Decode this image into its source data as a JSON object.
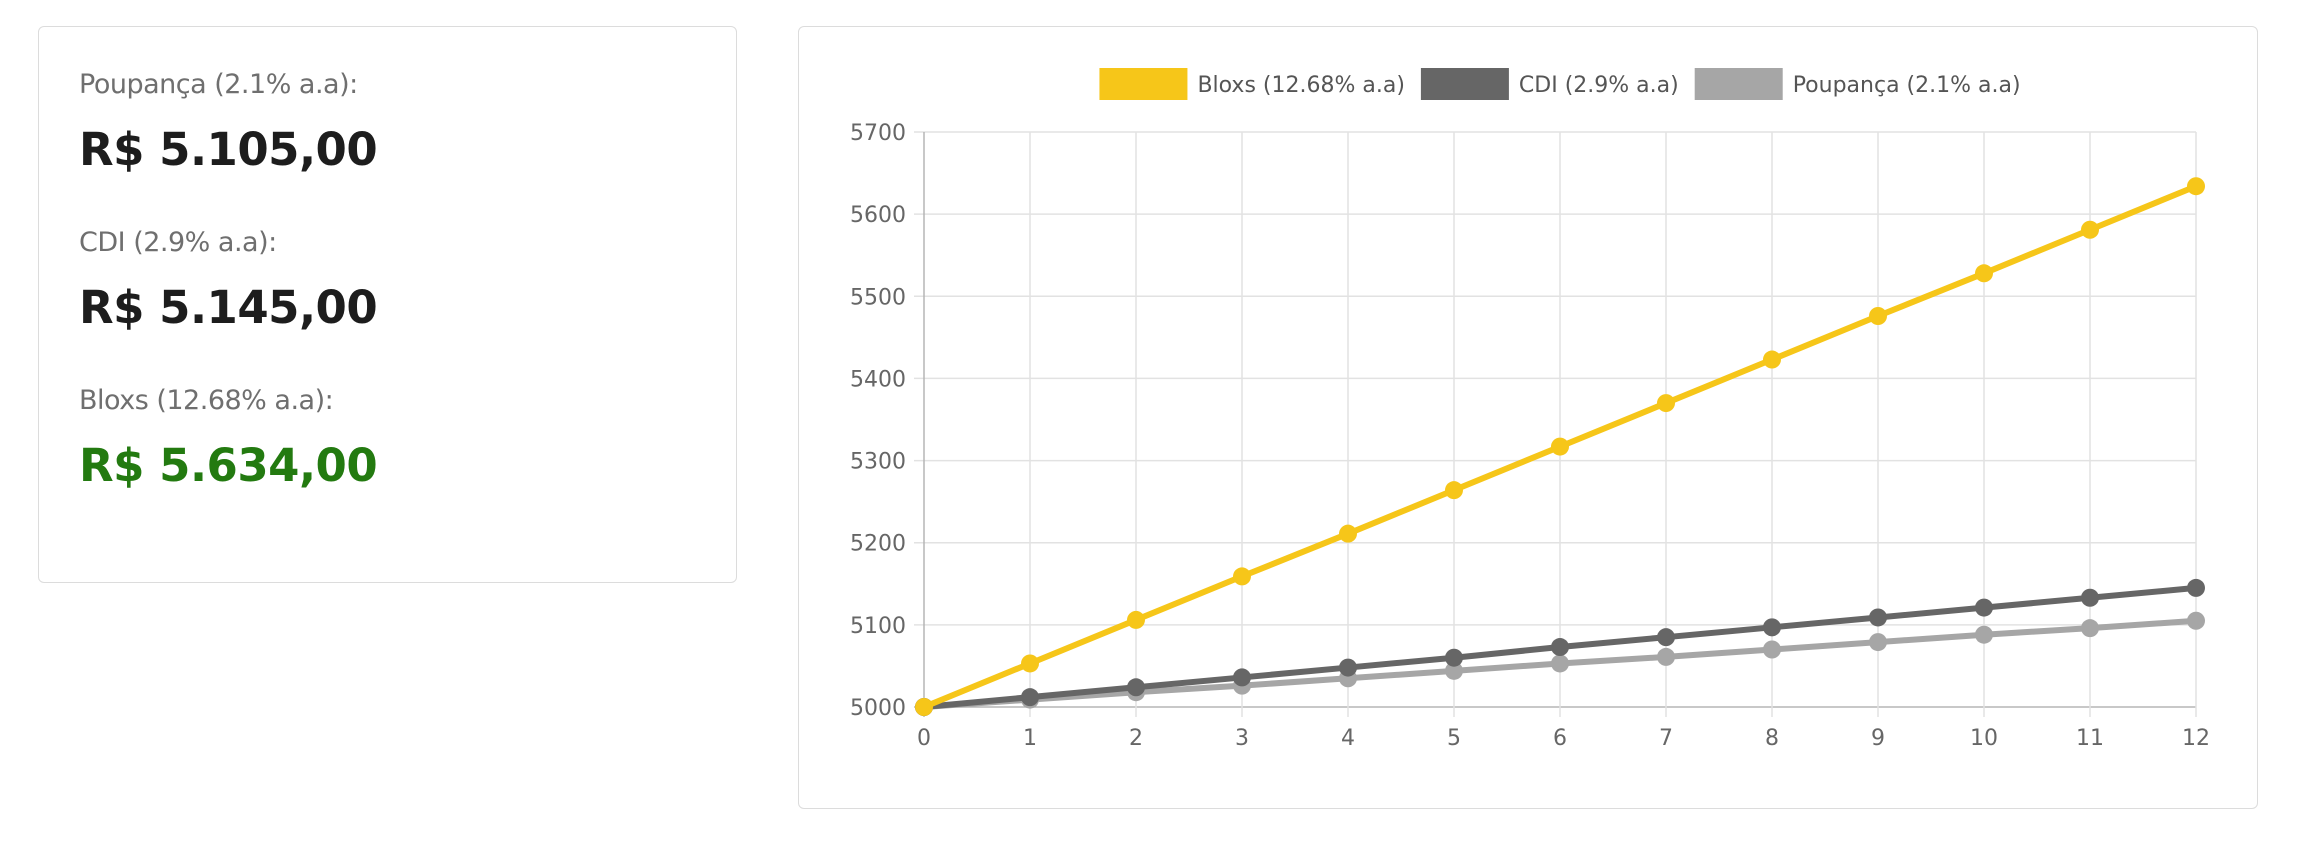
{
  "summary": {
    "items": [
      {
        "label": "Poupança (2.1% a.a):",
        "value": "R$ 5.105,00",
        "color": "#1d1d1d"
      },
      {
        "label": "CDI (2.9% a.a):",
        "value": "R$ 5.145,00",
        "color": "#1d1d1d"
      },
      {
        "label": "Bloxs (12.68% a.a):",
        "value": "R$ 5.634,00",
        "color": "#237a10"
      }
    ]
  },
  "chart_data": {
    "type": "line",
    "title": "",
    "xlabel": "",
    "ylabel": "",
    "x": [
      0,
      1,
      2,
      3,
      4,
      5,
      6,
      7,
      8,
      9,
      10,
      11,
      12
    ],
    "x_tick_labels": [
      "0",
      "1",
      "2",
      "3",
      "4",
      "5",
      "6",
      "7",
      "8",
      "9",
      "10",
      "11",
      "12"
    ],
    "y_tick_labels": [
      "5700",
      "5600",
      "5500",
      "5400",
      "5300",
      "5200",
      "5100",
      "5000"
    ],
    "y_ticks": [
      5700,
      5600,
      5500,
      5400,
      5300,
      5200,
      5100,
      5000
    ],
    "ylim": [
      5000,
      5700
    ],
    "xlim": [
      0,
      12
    ],
    "grid": true,
    "legend_position": "top-center",
    "series": [
      {
        "name": "Bloxs (12.68% a.a)",
        "color": "#f6c619",
        "values": [
          5000,
          5053,
          5106,
          5159,
          5211,
          5264,
          5317,
          5370,
          5423,
          5476,
          5528,
          5581,
          5634
        ]
      },
      {
        "name": "CDI (2.9% a.a)",
        "color": "#666666",
        "values": [
          5000,
          5012,
          5024,
          5036,
          5048,
          5060,
          5073,
          5085,
          5097,
          5109,
          5121,
          5133,
          5145
        ]
      },
      {
        "name": "Poupança (2.1% a.a)",
        "color": "#a6a6a6",
        "values": [
          5000,
          5009,
          5018,
          5026,
          5035,
          5044,
          5053,
          5061,
          5070,
          5079,
          5088,
          5096,
          5105
        ]
      }
    ]
  }
}
